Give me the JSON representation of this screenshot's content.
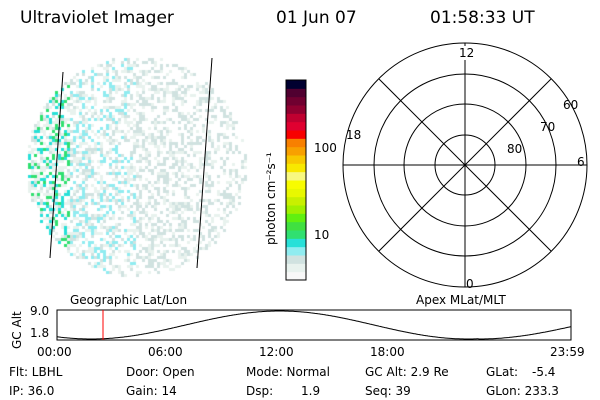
{
  "header": {
    "instrument": "Ultraviolet Imager",
    "date": "01 Jun 07",
    "time": "01:58:33 UT"
  },
  "colorbar": {
    "label": "photon cm⁻²s⁻¹",
    "ticks": [
      "100",
      "10"
    ],
    "colors": [
      "#f8f8f8",
      "#e8f2ee",
      "#d0e2e0",
      "#90ecf0",
      "#28e0d8",
      "#30e070",
      "#40e040",
      "#60f010",
      "#a0f000",
      "#c8f000",
      "#e8f800",
      "#f8fc00",
      "#f8f880",
      "#f8e800",
      "#f8c800",
      "#f8a000",
      "#f88000",
      "#f80000",
      "#e00030",
      "#c00030",
      "#900030",
      "#700030",
      "#500030",
      "#000030"
    ]
  },
  "polar": {
    "mlt_labels": {
      "top": "12",
      "bottom": "0",
      "left": "18",
      "right": "6"
    },
    "lat_labels": [
      "60",
      "70",
      "80"
    ]
  },
  "altitude_plot": {
    "left_title": "Geographic Lat/Lon",
    "right_title": "Apex MLat/MLT",
    "ylabel": "GC Alt",
    "yticks": [
      "9.0",
      "1.8"
    ],
    "xticks": [
      "00:00",
      "06:00",
      "12:00",
      "18:00",
      "23:59"
    ],
    "marker_color": "#ff0000",
    "marker_time": "01:58"
  },
  "status": {
    "flt": "Flt: LBHL",
    "ip": "IP: 36.0",
    "door": "Door: Open",
    "gain": "Gain: 14",
    "mode": "Mode: Normal",
    "dsp": "Dsp:",
    "dsp_val": "1.9",
    "gcalt": "GC Alt: 2.9 Re",
    "seq": "Seq: 39",
    "glat": "GLat:",
    "glat_val": "-5.4",
    "glon": "GLon: 233.3"
  }
}
